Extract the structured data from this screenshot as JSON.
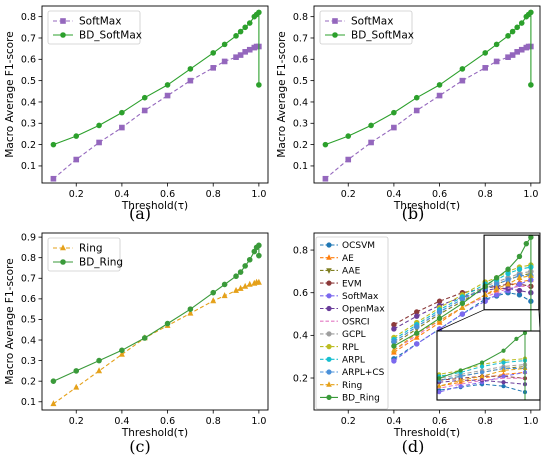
{
  "chart_data": [
    {
      "panel": "a",
      "caption": "(a)",
      "type": "line",
      "xlabel": "Threshold(τ)",
      "ylabel": "Macro Average F1-score",
      "xlim": [
        0.05,
        1.04
      ],
      "ylim": [
        0.02,
        0.85
      ],
      "xticks": [
        0.2,
        0.4,
        0.6,
        0.8,
        1.0
      ],
      "yticks": [
        0.1,
        0.2,
        0.3,
        0.4,
        0.5,
        0.6,
        0.7,
        0.8
      ],
      "legend_position": "top-left",
      "series": [
        {
          "name": "SoftMax",
          "color": "#9467bd",
          "linestyle": "dashed",
          "marker": "square",
          "x": [
            0.1,
            0.2,
            0.3,
            0.4,
            0.5,
            0.6,
            0.7,
            0.8,
            0.85,
            0.9,
            0.92,
            0.94,
            0.96,
            0.98,
            0.99,
            1.0
          ],
          "y": [
            0.04,
            0.13,
            0.21,
            0.28,
            0.36,
            0.43,
            0.5,
            0.56,
            0.59,
            0.61,
            0.62,
            0.635,
            0.645,
            0.655,
            0.66,
            0.66
          ]
        },
        {
          "name": "BD_SoftMax",
          "color": "#2ca02c",
          "linestyle": "solid",
          "marker": "circle",
          "x": [
            0.1,
            0.2,
            0.3,
            0.4,
            0.5,
            0.6,
            0.7,
            0.8,
            0.85,
            0.9,
            0.92,
            0.94,
            0.96,
            0.98,
            0.99,
            1.0,
            1.0
          ],
          "y": [
            0.2,
            0.24,
            0.29,
            0.35,
            0.42,
            0.48,
            0.555,
            0.63,
            0.67,
            0.71,
            0.73,
            0.75,
            0.77,
            0.8,
            0.81,
            0.82,
            0.48
          ]
        }
      ]
    },
    {
      "panel": "b",
      "caption": "(b)",
      "type": "line",
      "xlabel": "Threshold(τ)",
      "ylabel": "Macro Average F1-score",
      "xlim": [
        0.05,
        1.04
      ],
      "ylim": [
        0.02,
        0.85
      ],
      "xticks": [
        0.2,
        0.4,
        0.6,
        0.8,
        1.0
      ],
      "yticks": [
        0.1,
        0.2,
        0.3,
        0.4,
        0.5,
        0.6,
        0.7,
        0.8
      ],
      "legend_position": "top-left",
      "series": [
        {
          "name": "SoftMax",
          "color": "#9467bd",
          "linestyle": "dashed",
          "marker": "square",
          "x": [
            0.1,
            0.2,
            0.3,
            0.4,
            0.5,
            0.6,
            0.7,
            0.8,
            0.85,
            0.9,
            0.92,
            0.94,
            0.96,
            0.98,
            0.99,
            1.0
          ],
          "y": [
            0.04,
            0.13,
            0.21,
            0.28,
            0.36,
            0.43,
            0.5,
            0.56,
            0.59,
            0.61,
            0.62,
            0.635,
            0.645,
            0.655,
            0.66,
            0.66
          ]
        },
        {
          "name": "BD_SoftMax",
          "color": "#2ca02c",
          "linestyle": "solid",
          "marker": "circle",
          "x": [
            0.1,
            0.2,
            0.3,
            0.4,
            0.5,
            0.6,
            0.7,
            0.8,
            0.85,
            0.9,
            0.92,
            0.94,
            0.96,
            0.98,
            0.99,
            1.0,
            1.0
          ],
          "y": [
            0.2,
            0.24,
            0.29,
            0.35,
            0.42,
            0.48,
            0.555,
            0.63,
            0.67,
            0.71,
            0.73,
            0.75,
            0.77,
            0.8,
            0.81,
            0.82,
            0.48
          ]
        }
      ]
    },
    {
      "panel": "c",
      "caption": "(c)",
      "type": "line",
      "xlabel": "Threshold(τ)",
      "ylabel": "Macro Average F1-score",
      "xlim": [
        0.05,
        1.04
      ],
      "ylim": [
        0.06,
        0.92
      ],
      "xticks": [
        0.2,
        0.4,
        0.6,
        0.8,
        1.0
      ],
      "yticks": [
        0.1,
        0.2,
        0.3,
        0.4,
        0.5,
        0.6,
        0.7,
        0.8,
        0.9
      ],
      "legend_position": "top-left",
      "series": [
        {
          "name": "Ring",
          "color": "#e5a11a",
          "linestyle": "dashed",
          "marker": "triangle",
          "x": [
            0.1,
            0.2,
            0.3,
            0.4,
            0.5,
            0.6,
            0.7,
            0.8,
            0.85,
            0.9,
            0.92,
            0.94,
            0.96,
            0.98,
            0.99,
            1.0
          ],
          "y": [
            0.09,
            0.17,
            0.25,
            0.33,
            0.41,
            0.47,
            0.53,
            0.59,
            0.615,
            0.64,
            0.65,
            0.66,
            0.67,
            0.675,
            0.68,
            0.68
          ]
        },
        {
          "name": "BD_Ring",
          "color": "#3a9a3a",
          "linestyle": "solid",
          "marker": "circle",
          "x": [
            0.1,
            0.2,
            0.3,
            0.4,
            0.5,
            0.6,
            0.7,
            0.8,
            0.85,
            0.9,
            0.92,
            0.94,
            0.96,
            0.98,
            0.99,
            1.0,
            1.0
          ],
          "y": [
            0.2,
            0.25,
            0.3,
            0.35,
            0.41,
            0.48,
            0.55,
            0.63,
            0.67,
            0.71,
            0.73,
            0.76,
            0.79,
            0.83,
            0.85,
            0.86,
            0.81
          ]
        }
      ]
    },
    {
      "panel": "d",
      "caption": "(d)",
      "type": "line",
      "xlabel": "Threshold(τ)",
      "ylabel": "",
      "xlim": [
        0.05,
        1.04
      ],
      "ylim": [
        0.05,
        0.88
      ],
      "xticks": [
        0.2,
        0.4,
        0.6,
        0.8,
        1.0
      ],
      "yticks": [
        0.2,
        0.4,
        0.6,
        0.8
      ],
      "legend_position": "top-left",
      "series": [
        {
          "name": "OCSVM",
          "color": "#1f77b4",
          "linestyle": "dashed",
          "marker": "circle",
          "x": [
            0.4,
            0.5,
            0.6,
            0.7,
            0.8,
            0.85,
            0.9,
            0.95,
            1.0
          ],
          "y": [
            0.29,
            0.36,
            0.43,
            0.5,
            0.57,
            0.585,
            0.6,
            0.59,
            0.56
          ]
        },
        {
          "name": "AE",
          "color": "#ff7f0e",
          "linestyle": "dashed",
          "marker": "triangle",
          "x": [
            0.4,
            0.5,
            0.6,
            0.7,
            0.8,
            0.85,
            0.9,
            0.95,
            1.0
          ],
          "y": [
            0.32,
            0.39,
            0.46,
            0.53,
            0.59,
            0.61,
            0.63,
            0.65,
            0.66
          ]
        },
        {
          "name": "AAE",
          "color": "#7f7f22",
          "linestyle": "dashed",
          "marker": "triangle-down",
          "x": [
            0.4,
            0.5,
            0.6,
            0.7,
            0.8,
            0.85,
            0.9,
            0.95,
            1.0
          ],
          "y": [
            0.36,
            0.43,
            0.5,
            0.56,
            0.62,
            0.64,
            0.66,
            0.68,
            0.69
          ]
        },
        {
          "name": "EVM",
          "color": "#8c3a3a",
          "linestyle": "dashed",
          "marker": "circle",
          "x": [
            0.4,
            0.5,
            0.6,
            0.7,
            0.8,
            0.85,
            0.9,
            0.95,
            1.0
          ],
          "y": [
            0.45,
            0.51,
            0.56,
            0.6,
            0.62,
            0.63,
            0.64,
            0.64,
            0.63
          ]
        },
        {
          "name": "SoftMax",
          "color": "#7b68ee",
          "linestyle": "dashed",
          "marker": "circle",
          "x": [
            0.4,
            0.5,
            0.6,
            0.7,
            0.8,
            0.85,
            0.9,
            0.95,
            1.0
          ],
          "y": [
            0.28,
            0.36,
            0.43,
            0.5,
            0.56,
            0.59,
            0.61,
            0.64,
            0.66
          ]
        },
        {
          "name": "OpenMax",
          "color": "#6a3d9a",
          "linestyle": "dashed",
          "marker": "circle",
          "x": [
            0.4,
            0.5,
            0.6,
            0.7,
            0.8,
            0.85,
            0.9,
            0.95,
            1.0
          ],
          "y": [
            0.43,
            0.49,
            0.54,
            0.58,
            0.61,
            0.62,
            0.62,
            0.61,
            0.6
          ]
        },
        {
          "name": "OSRCI",
          "color": "#e377c2",
          "linestyle": "dashed",
          "marker": "none",
          "x": [
            0.4,
            0.5,
            0.6,
            0.7,
            0.8,
            0.85,
            0.9,
            0.95,
            1.0
          ],
          "y": [
            0.33,
            0.4,
            0.47,
            0.53,
            0.58,
            0.6,
            0.62,
            0.63,
            0.63
          ]
        },
        {
          "name": "GCPL",
          "color": "#9e9e9e",
          "linestyle": "dashed",
          "marker": "circle",
          "x": [
            0.4,
            0.5,
            0.6,
            0.7,
            0.8,
            0.85,
            0.9,
            0.95,
            1.0
          ],
          "y": [
            0.37,
            0.44,
            0.51,
            0.57,
            0.63,
            0.65,
            0.67,
            0.69,
            0.7
          ]
        },
        {
          "name": "RPL",
          "color": "#bcbd22",
          "linestyle": "dashed",
          "marker": "circle",
          "x": [
            0.4,
            0.5,
            0.6,
            0.7,
            0.8,
            0.85,
            0.9,
            0.95,
            1.0
          ],
          "y": [
            0.39,
            0.46,
            0.53,
            0.59,
            0.65,
            0.67,
            0.7,
            0.72,
            0.73
          ]
        },
        {
          "name": "ARPL",
          "color": "#17becf",
          "linestyle": "dashed",
          "marker": "circle",
          "x": [
            0.4,
            0.5,
            0.6,
            0.7,
            0.8,
            0.85,
            0.9,
            0.95,
            1.0
          ],
          "y": [
            0.38,
            0.45,
            0.52,
            0.58,
            0.64,
            0.66,
            0.69,
            0.71,
            0.72
          ]
        },
        {
          "name": "ARPL+CS",
          "color": "#4a90d9",
          "linestyle": "dashed",
          "marker": "circle",
          "x": [
            0.4,
            0.5,
            0.6,
            0.7,
            0.8,
            0.85,
            0.9,
            0.95,
            1.0
          ],
          "y": [
            0.37,
            0.44,
            0.51,
            0.57,
            0.62,
            0.64,
            0.66,
            0.68,
            0.68
          ]
        },
        {
          "name": "Ring",
          "color": "#e5a11a",
          "linestyle": "dashed",
          "marker": "triangle",
          "x": [
            0.4,
            0.5,
            0.6,
            0.7,
            0.8,
            0.85,
            0.9,
            0.95,
            1.0
          ],
          "y": [
            0.33,
            0.41,
            0.47,
            0.53,
            0.59,
            0.62,
            0.64,
            0.67,
            0.68
          ]
        },
        {
          "name": "BD_Ring",
          "color": "#3a9a3a",
          "linestyle": "solid",
          "marker": "circle",
          "x": [
            0.4,
            0.5,
            0.6,
            0.7,
            0.8,
            0.85,
            0.9,
            0.95,
            0.98,
            1.0,
            1.0
          ],
          "y": [
            0.35,
            0.41,
            0.48,
            0.55,
            0.63,
            0.67,
            0.71,
            0.77,
            0.83,
            0.86,
            0.38
          ]
        }
      ]
    }
  ]
}
